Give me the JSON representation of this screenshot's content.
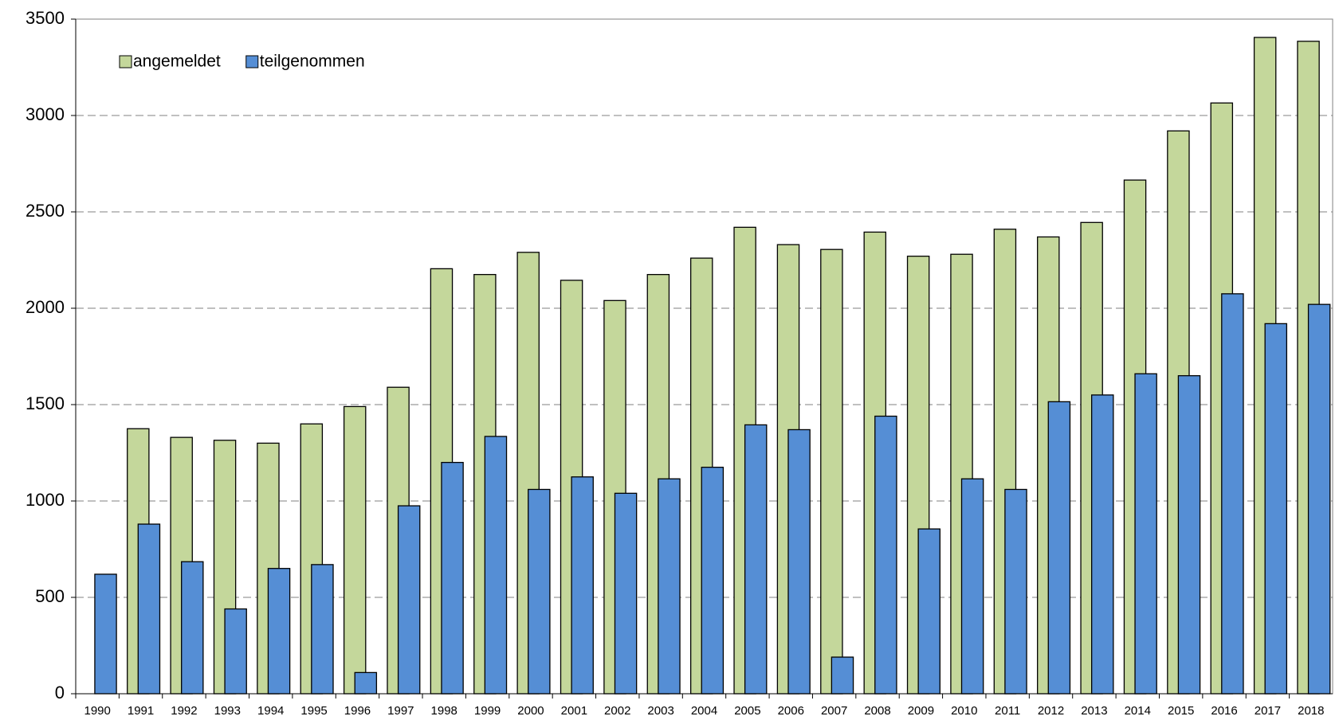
{
  "chart_data": {
    "type": "bar",
    "categories": [
      "1990",
      "1991",
      "1992",
      "1993",
      "1994",
      "1995",
      "1996",
      "1997",
      "1998",
      "1999",
      "2000",
      "2001",
      "2002",
      "2003",
      "2004",
      "2005",
      "2006",
      "2007",
      "2008",
      "2009",
      "2010",
      "2011",
      "2012",
      "2013",
      "2014",
      "2015",
      "2016",
      "2017",
      "2018"
    ],
    "series": [
      {
        "name": "angemeldet",
        "color": "#c4d79b",
        "values": [
          null,
          1375,
          1330,
          1315,
          1300,
          1400,
          1490,
          1590,
          2205,
          2175,
          2290,
          2145,
          2040,
          2175,
          2260,
          2420,
          2330,
          2305,
          2395,
          2270,
          2280,
          2410,
          2370,
          2445,
          2665,
          2920,
          3065,
          3405,
          3385
        ]
      },
      {
        "name": "teilgenommen",
        "color": "#558ed5",
        "values": [
          620,
          880,
          685,
          440,
          650,
          670,
          110,
          975,
          1200,
          1335,
          1060,
          1125,
          1040,
          1115,
          1175,
          1395,
          1370,
          190,
          1440,
          855,
          1115,
          1060,
          1515,
          1550,
          1660,
          1650,
          2075,
          1920,
          2020
        ]
      }
    ],
    "ylim": [
      0,
      3500
    ],
    "yticks": [
      0,
      500,
      1000,
      1500,
      2000,
      2500,
      3000,
      3500
    ],
    "grid": true,
    "legend": "top-left"
  }
}
